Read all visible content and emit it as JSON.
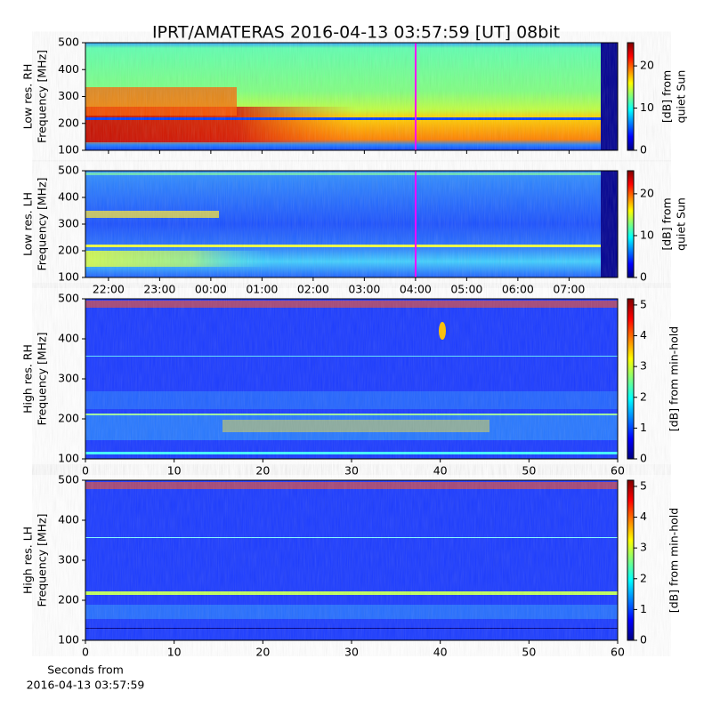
{
  "title": "IPRT/AMATERAS 2016-04-13 03:57:59 [UT]   08bit",
  "chart_data": [
    {
      "type": "heatmap",
      "ylabel": [
        "Low res. RH",
        "Frequency [MHz]"
      ],
      "ylim": [
        100,
        500
      ],
      "yticks": [
        100,
        200,
        300,
        400,
        500
      ],
      "colorbar_label": [
        "[dB] from",
        "quiet Sun"
      ],
      "clim": [
        0,
        25.5
      ],
      "cticks": [
        0,
        10,
        20
      ]
    },
    {
      "type": "heatmap",
      "ylabel": [
        "Low res. LH",
        "Frequency [MHz]"
      ],
      "ylim": [
        100,
        500
      ],
      "yticks": [
        100,
        200,
        300,
        400,
        500
      ],
      "xlim": [
        21.55,
        31.95
      ],
      "xticks": [
        {
          "value": 22,
          "label": "22:00"
        },
        {
          "value": 23,
          "label": "23:00"
        },
        {
          "value": 24,
          "label": "00:00"
        },
        {
          "value": 25,
          "label": "01:00"
        },
        {
          "value": 26,
          "label": "02:00"
        },
        {
          "value": 27,
          "label": "03:00"
        },
        {
          "value": 28,
          "label": "04:00"
        },
        {
          "value": 29,
          "label": "05:00"
        },
        {
          "value": 30,
          "label": "06:00"
        },
        {
          "value": 31,
          "label": "07:00"
        }
      ],
      "colorbar_label": [
        "[dB] from",
        "quiet Sun"
      ],
      "clim": [
        0,
        25.5
      ],
      "cticks": [
        0,
        10,
        20
      ]
    },
    {
      "type": "heatmap",
      "ylabel": [
        "High res. RH",
        "Frequency [MHz]"
      ],
      "ylim": [
        100,
        500
      ],
      "yticks": [
        100,
        200,
        300,
        400,
        500
      ],
      "xlim": [
        0,
        60
      ],
      "xticks": [
        0,
        10,
        20,
        30,
        40,
        50,
        60
      ],
      "colorbar_label": [
        "[dB] from min-hold"
      ],
      "clim": [
        0,
        5.2
      ],
      "cticks": [
        0,
        1,
        2,
        3,
        4,
        5
      ]
    },
    {
      "type": "heatmap",
      "ylabel": [
        "High res. LH",
        "Frequency [MHz]"
      ],
      "ylim": [
        100,
        500
      ],
      "yticks": [
        100,
        200,
        300,
        400,
        500
      ],
      "xlim": [
        0,
        60
      ],
      "xticks": [
        0,
        10,
        20,
        30,
        40,
        50,
        60
      ],
      "xlabel": [
        "Seconds from",
        "2016-04-13 03:57:59"
      ],
      "colorbar_label": [
        "[dB] from min-hold"
      ],
      "clim": [
        0,
        5.2
      ],
      "cticks": [
        0,
        1,
        2,
        3,
        4,
        5
      ]
    }
  ]
}
